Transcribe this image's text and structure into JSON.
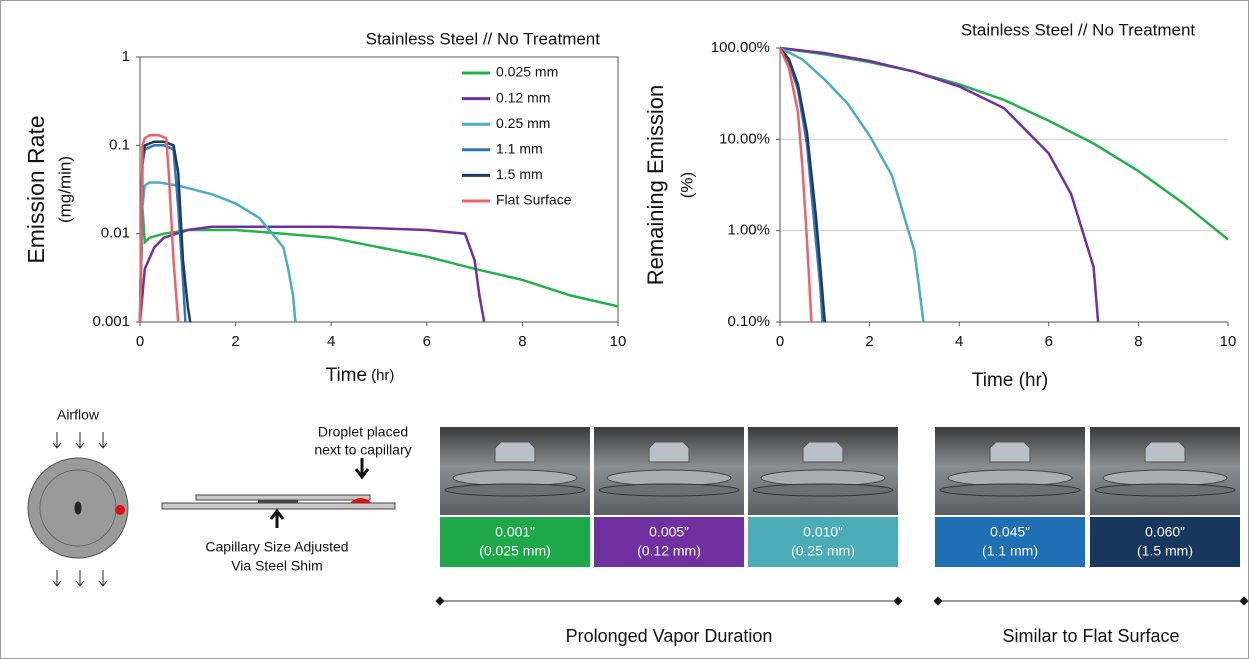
{
  "chart_data": [
    {
      "type": "line",
      "title": "Stainless Steel // No Treatment",
      "y_label": [
        "Emission Rate",
        "(mg/min)"
      ],
      "x_label": [
        "Time",
        "(hr)"
      ],
      "log_y": true,
      "frame": true,
      "grid": false,
      "legend": "upper right",
      "xlim": [
        0,
        10
      ],
      "xticks": [
        0,
        2,
        4,
        6,
        8,
        10
      ],
      "ylim": [
        0.001,
        1
      ],
      "yticks": [
        0.001,
        0.01,
        0.1,
        1
      ],
      "series": [
        {
          "name": "0.025 mm",
          "color": "#22b14c",
          "x": [
            0,
            0.05,
            0.1,
            0.2,
            0.5,
            1,
            2,
            3,
            4,
            5,
            6,
            7,
            8,
            9,
            10
          ],
          "values": [
            0.001,
            0.02,
            0.008,
            0.009,
            0.01,
            0.011,
            0.011,
            0.01,
            0.009,
            0.007,
            0.0055,
            0.004,
            0.003,
            0.002,
            0.0015
          ]
        },
        {
          "name": "0.12 mm",
          "color": "#7030a0",
          "x": [
            0,
            0.1,
            0.3,
            0.5,
            1,
            1.5,
            2,
            3,
            4,
            5,
            6,
            6.8,
            7,
            7.1,
            7.2
          ],
          "values": [
            0.001,
            0.004,
            0.007,
            0.009,
            0.011,
            0.012,
            0.012,
            0.012,
            0.012,
            0.0115,
            0.011,
            0.01,
            0.005,
            0.002,
            0.001
          ]
        },
        {
          "name": "0.25 mm",
          "color": "#4bacc6",
          "x": [
            0,
            0.05,
            0.1,
            0.2,
            0.4,
            0.8,
            1.5,
            2,
            2.5,
            3,
            3.1,
            3.2,
            3.25
          ],
          "values": [
            0.001,
            0.02,
            0.035,
            0.038,
            0.038,
            0.035,
            0.028,
            0.022,
            0.015,
            0.007,
            0.004,
            0.002,
            0.001
          ]
        },
        {
          "name": "1.1 mm",
          "color": "#2e75b6",
          "x": [
            0,
            0.05,
            0.1,
            0.3,
            0.5,
            0.7,
            0.8,
            0.9,
            0.95
          ],
          "values": [
            0.001,
            0.06,
            0.09,
            0.1,
            0.1,
            0.09,
            0.02,
            0.003,
            0.001
          ]
        },
        {
          "name": "1.5 mm",
          "color": "#1f3864",
          "x": [
            0,
            0.05,
            0.1,
            0.3,
            0.5,
            0.7,
            0.8,
            0.9,
            1.0,
            1.05
          ],
          "values": [
            0.001,
            0.07,
            0.1,
            0.11,
            0.11,
            0.1,
            0.05,
            0.005,
            0.0015,
            0.001
          ]
        },
        {
          "name": "Flat Surface",
          "color": "#f0606a",
          "x": [
            0,
            0.05,
            0.1,
            0.2,
            0.4,
            0.55,
            0.6,
            0.7,
            0.8
          ],
          "values": [
            0.001,
            0.1,
            0.12,
            0.13,
            0.13,
            0.12,
            0.05,
            0.005,
            0.001
          ]
        }
      ]
    },
    {
      "type": "line",
      "title": "Stainless Steel // No Treatment",
      "y_label": [
        "Remaining Emission",
        "(%)"
      ],
      "x_label": [
        "Time (hr)"
      ],
      "log_y": true,
      "frame": false,
      "grid": true,
      "legend": false,
      "xlim": [
        0,
        10
      ],
      "xticks": [
        0,
        2,
        4,
        6,
        8,
        10
      ],
      "ylim": [
        0.1,
        100
      ],
      "yticks": [
        {
          "value": 0.1,
          "label": "0.10%"
        },
        {
          "value": 1,
          "label": "1.00%"
        },
        {
          "value": 10,
          "label": "10.00%"
        },
        {
          "value": 100,
          "label": "100.00%"
        }
      ],
      "series": [
        {
          "color": "#22b14c",
          "x": [
            0,
            1,
            2,
            3,
            4,
            5,
            6,
            7,
            8,
            9,
            10
          ],
          "values": [
            100,
            85,
            70,
            55,
            40,
            27,
            16,
            9,
            4.5,
            2,
            0.8
          ]
        },
        {
          "color": "#7030a0",
          "x": [
            0,
            1,
            2,
            3,
            4,
            5,
            6,
            6.5,
            7,
            7.1
          ],
          "values": [
            100,
            88,
            72,
            55,
            38,
            22,
            7,
            2.5,
            0.4,
            0.1
          ]
        },
        {
          "color": "#4bacc6",
          "x": [
            0,
            0.5,
            1,
            1.5,
            2,
            2.5,
            3,
            3.1,
            3.2
          ],
          "values": [
            100,
            75,
            45,
            25,
            11,
            4,
            0.6,
            0.25,
            0.1
          ]
        },
        {
          "color": "#2e75b6",
          "x": [
            0,
            0.2,
            0.4,
            0.6,
            0.8,
            0.9,
            0.95
          ],
          "values": [
            100,
            70,
            35,
            9,
            0.8,
            0.25,
            0.1
          ]
        },
        {
          "color": "#1f3864",
          "x": [
            0,
            0.2,
            0.4,
            0.6,
            0.8,
            0.9,
            1.0
          ],
          "values": [
            100,
            75,
            40,
            12,
            1.5,
            0.4,
            0.1
          ]
        },
        {
          "color": "#f0606a",
          "x": [
            0,
            0.2,
            0.4,
            0.5,
            0.6,
            0.65,
            0.7
          ],
          "values": [
            100,
            60,
            20,
            5,
            0.8,
            0.3,
            0.1
          ]
        }
      ]
    }
  ],
  "diagram": {
    "airflow": "Airflow",
    "droplet": [
      "Droplet placed",
      "next to capillary"
    ],
    "shim": [
      "Capillary Size Adjusted",
      "Via Steel Shim"
    ]
  },
  "samples": [
    {
      "size_in": "0.001”",
      "size_mm": "(0.025 mm)",
      "color": "#1fa84a"
    },
    {
      "size_in": "0.005”",
      "size_mm": "(0.12 mm)",
      "color": "#7030a0"
    },
    {
      "size_in": "0.010”",
      "size_mm": "(0.25 mm)",
      "color": "#4bacb8"
    },
    {
      "size_in": "0.045”",
      "size_mm": "(1.1 mm)",
      "color": "#1f6fb5"
    },
    {
      "size_in": "0.060”",
      "size_mm": "(1.5 mm)",
      "color": "#17375e"
    }
  ],
  "groups": [
    "Prolonged Vapor Duration",
    "Similar to Flat Surface"
  ]
}
